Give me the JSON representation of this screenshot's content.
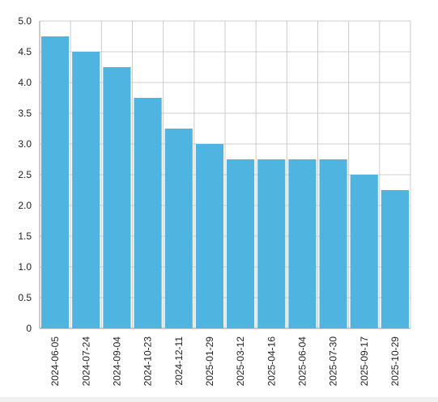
{
  "chart_data": {
    "type": "bar",
    "title": "",
    "xlabel": "",
    "ylabel": "",
    "categories": [
      "2024-06-05",
      "2024-07-24",
      "2024-09-04",
      "2024-10-23",
      "2024-12-11",
      "2025-01-29",
      "2025-03-12",
      "2025-04-16",
      "2025-06-04",
      "2025-07-30",
      "2025-09-17",
      "2025-10-29"
    ],
    "values": [
      4.75,
      4.5,
      4.25,
      3.75,
      3.25,
      3.0,
      2.75,
      2.75,
      2.75,
      2.75,
      2.5,
      2.25
    ],
    "ylim": [
      0,
      5
    ],
    "yticks": [
      "0",
      "0.5",
      "1.0",
      "1.5",
      "2.0",
      "2.5",
      "3.0",
      "3.5",
      "4.0",
      "4.5",
      "5.0"
    ],
    "grid": true,
    "legend": "none",
    "colors": {
      "bar": "#4fb5e0",
      "grid": "#cccccc",
      "axis": "#999999",
      "text": "#222222"
    }
  }
}
